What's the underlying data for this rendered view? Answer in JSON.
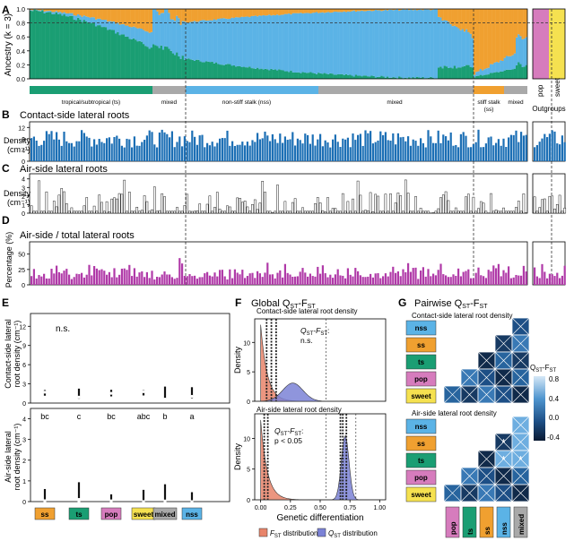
{
  "panels": {
    "A": {
      "letter": "A",
      "ylabel": "Ancestry (k = 3)",
      "yticks": [
        "0.0",
        "0.2",
        "0.4",
        "0.6",
        "0.8",
        "1.0"
      ],
      "groups": [
        {
          "label": "tropical/subtropical (ts)",
          "color": "#1a9e73"
        },
        {
          "label": "mixed",
          "color": "#a9a9a9"
        },
        {
          "label": "non-stiff stalk (nss)",
          "color": "#5bb3e6"
        },
        {
          "label": "mixed",
          "color": "#a9a9a9"
        },
        {
          "label": "stiff stalk\n(ss)",
          "color": "#f0a030"
        },
        {
          "label": "mixed",
          "color": "#a9a9a9"
        }
      ],
      "outgroup_labels": [
        "pop",
        "sweet"
      ],
      "outgroups_title": "Outgroups",
      "ancestry_colors": {
        "ts": "#1a9e73",
        "nss": "#5bb3e6",
        "ss": "#f0a030",
        "pop": "#d67cbd",
        "sweet": "#f5e150"
      }
    },
    "B": {
      "letter": "B",
      "title": "Contact-side lateral roots",
      "ylabel": "Density\n(cm⁻¹)",
      "yticks": [
        "0",
        "4",
        "8",
        "12"
      ],
      "bar_color": "#1c6fb5"
    },
    "C": {
      "letter": "C",
      "title": "Air-side lateral roots",
      "ylabel": "Density\n(cm⁻¹)",
      "yticks": [
        "0",
        "1",
        "2",
        "3",
        "4"
      ],
      "bar_color": "#ffffff"
    },
    "D": {
      "letter": "D",
      "title": "Air-side / total lateral roots",
      "ylabel": "Percentage (%)",
      "yticks": [
        "0",
        "25",
        "50"
      ],
      "bar_color": "#b03aa8"
    },
    "E": {
      "letter": "E",
      "top": {
        "ylabel": "Contact-side lateral\nroot density (cm⁻¹)",
        "yticks": [
          "0",
          "3",
          "6",
          "9",
          "12"
        ],
        "annotation": "n.s."
      },
      "bottom": {
        "ylabel": "Air-side lateral\nroot density (cm⁻¹)",
        "yticks": [
          "0",
          "1",
          "2",
          "3",
          "4"
        ],
        "letters": [
          "bc",
          "c",
          "bc",
          "abc",
          "b",
          "a"
        ]
      },
      "groups": [
        {
          "label": "ss",
          "color": "#f0a030"
        },
        {
          "label": "ts",
          "color": "#1a9e73"
        },
        {
          "label": "pop",
          "color": "#d67cbd"
        },
        {
          "label": "sweet",
          "color": "#f5e150"
        },
        {
          "label": "mixed",
          "color": "#a9a9a9"
        },
        {
          "label": "nss",
          "color": "#5bb3e6"
        }
      ]
    },
    "F": {
      "letter": "F",
      "title": "Global Q",
      "title_sub1": "ST",
      "title_mid": "-F",
      "title_sub2": "ST",
      "top": {
        "subtitle": "Contact-side lateral root density",
        "stat": "Q",
        "stat_sub1": "ST",
        "stat_mid": "-F",
        "stat_sub2": "ST",
        "stat_end": ":",
        "result": "n.s."
      },
      "bottom": {
        "subtitle": "Air-side lateral root density",
        "stat": "Q",
        "stat_sub1": "ST",
        "stat_mid": "-F",
        "stat_sub2": "ST",
        "stat_end": ":",
        "result": "p < 0.05"
      },
      "ylabel": "Density",
      "yticks": [
        "0",
        "5",
        "10"
      ],
      "xticks": [
        "0.00",
        "0.25",
        "0.50",
        "0.75",
        "1.00"
      ],
      "xlabel": "Genetic differentiation",
      "legend": [
        {
          "label": "F",
          "sub": "ST",
          "tail": " distribution",
          "color": "#e8846a"
        },
        {
          "label": "Q",
          "sub": "ST",
          "tail": " distribution",
          "color": "#7b82d6"
        }
      ]
    },
    "G": {
      "letter": "G",
      "title": "Pairwise Q",
      "title_sub1": "ST",
      "title_mid": "-F",
      "title_sub2": "ST",
      "top_subtitle": "Contact-side lateral root density",
      "bottom_subtitle": "Air-side lateral root density",
      "rows": [
        {
          "label": "nss",
          "color": "#5bb3e6"
        },
        {
          "label": "ss",
          "color": "#f0a030"
        },
        {
          "label": "ts",
          "color": "#1a9e73"
        },
        {
          "label": "pop",
          "color": "#d67cbd"
        },
        {
          "label": "sweet",
          "color": "#f5e150"
        }
      ],
      "cols": [
        {
          "label": "pop",
          "color": "#d67cbd"
        },
        {
          "label": "ts",
          "color": "#1a9e73"
        },
        {
          "label": "ss",
          "color": "#f0a030"
        },
        {
          "label": "nss",
          "color": "#5bb3e6"
        },
        {
          "label": "mixed",
          "color": "#a9a9a9"
        }
      ],
      "colorbar_title": "Q",
      "colorbar_sub1": "ST",
      "colorbar_mid": "-F",
      "colorbar_sub2": "ST",
      "colorbar_ticks": [
        "0.8",
        "0.4",
        "0.0",
        "-0.4"
      ],
      "star": "*"
    }
  }
}
